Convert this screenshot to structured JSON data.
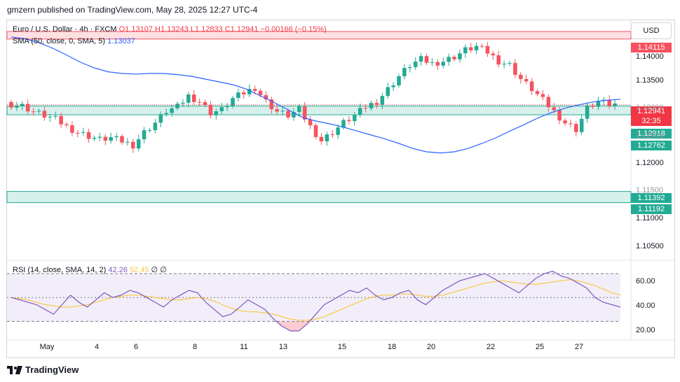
{
  "header": {
    "published": "gmzern published on TradingView.com, May 28, 2025 12:27 UTC-4"
  },
  "legend": {
    "symbol": "Euro / U.S. Dollar · 4h · FXCM",
    "open": "O1.13107",
    "high": "H1.13243",
    "low": "L1.12833",
    "close": "C1.12941",
    "change": "−0.00166 (−0.15%)"
  },
  "sma_legend": {
    "label": "SMA (50, close, 0, SMA, 5)",
    "value": "1.13037"
  },
  "rsi_legend": {
    "label": "RSI (14, close, SMA, 14, 2)",
    "value1": "42.26",
    "value2": "52.45",
    "extra": "∅ ∅"
  },
  "currency": "USD",
  "price_labels": [
    {
      "text": "1.14115",
      "color": "#f7525f"
    },
    {
      "text": "1.12941",
      "color": "#f23645"
    },
    {
      "text": "32:35",
      "color": "#f23645"
    },
    {
      "text": "1.12918",
      "color": "#22ab94"
    },
    {
      "text": "1.12762",
      "color": "#22ab94"
    },
    {
      "text": "1.11392",
      "color": "#22ab94"
    },
    {
      "text": "1.11192",
      "color": "#22ab94"
    }
  ],
  "footer": {
    "brand": "TradingView"
  },
  "chart_data": {
    "type": "candlestick",
    "symbol": "EURUSD",
    "interval": "4h",
    "x_ticks": [
      "May",
      "4",
      "6",
      "8",
      "11",
      "13",
      "15",
      "18",
      "20",
      "22",
      "25",
      "27"
    ],
    "y_ticks": [
      "1.14000",
      "1.13500",
      "1.13000",
      "1.12500",
      "1.12000",
      "1.11500",
      "1.11000",
      "1.10500"
    ],
    "ylim": [
      1.1025,
      1.1445
    ],
    "zones": [
      {
        "low": 1.14115,
        "high": 1.1425,
        "color": "#f7525f"
      },
      {
        "low": 1.12762,
        "high": 1.12918,
        "color": "#22ab94"
      },
      {
        "low": 1.11192,
        "high": 1.11392,
        "color": "#22ab94"
      }
    ],
    "close_series": [
      1.1295,
      1.1292,
      1.1282,
      1.1275,
      1.1268,
      1.1255,
      1.1245,
      1.1238,
      1.1232,
      1.1235,
      1.1229,
      1.1222,
      1.1245,
      1.1262,
      1.1283,
      1.129,
      1.131,
      1.13,
      1.128,
      1.1285,
      1.1305,
      1.1315,
      1.1325,
      1.13,
      1.1282,
      1.1275,
      1.1285,
      1.1255,
      1.123,
      1.1245,
      1.1262,
      1.1275,
      1.129,
      1.13,
      1.1322,
      1.1345,
      1.1365,
      1.1375,
      1.1368,
      1.1372,
      1.138,
      1.1392,
      1.1398,
      1.1388,
      1.1372,
      1.1365,
      1.134,
      1.1322,
      1.1302,
      1.1282,
      1.1262,
      1.125,
      1.1288,
      1.13,
      1.1294
    ],
    "sma_series": [
      1.1415,
      1.1412,
      1.1405,
      1.1395,
      1.1383,
      1.137,
      1.136,
      1.1353,
      1.135,
      1.1349,
      1.135,
      1.135,
      1.1348,
      1.1345,
      1.134,
      1.1335,
      1.133,
      1.1322,
      1.131,
      1.1298,
      1.1285,
      1.1272,
      1.1265,
      1.126,
      1.1254,
      1.1247,
      1.124,
      1.1233,
      1.1225,
      1.1216,
      1.121,
      1.1208,
      1.121,
      1.1216,
      1.1225,
      1.1235,
      1.1247,
      1.1258,
      1.127,
      1.128,
      1.1288,
      1.1294,
      1.1299,
      1.1302,
      1.1304
    ],
    "rsi": {
      "ylim": [
        15,
        80
      ],
      "levels": [
        70,
        50,
        30
      ],
      "y_ticks": [
        "60.00",
        "40.00",
        "20.00"
      ],
      "series": [
        50,
        48,
        46,
        44,
        40,
        36,
        44,
        52,
        46,
        42,
        48,
        54,
        50,
        52,
        56,
        54,
        50,
        46,
        42,
        48,
        52,
        56,
        54,
        46,
        40,
        34,
        36,
        42,
        48,
        44,
        40,
        32,
        26,
        22,
        22,
        28,
        36,
        44,
        48,
        52,
        56,
        54,
        58,
        52,
        48,
        50,
        54,
        56,
        48,
        44,
        50,
        56,
        60,
        64,
        66,
        68,
        70,
        66,
        62,
        58,
        54,
        60,
        66,
        70,
        72,
        68,
        66,
        62,
        58,
        50,
        46,
        44,
        42
      ],
      "ma_series": [
        50,
        49,
        48,
        46,
        44,
        43,
        42,
        42,
        43,
        44,
        46,
        48,
        50,
        51,
        52,
        52,
        51,
        50,
        49,
        48,
        48,
        49,
        50,
        49,
        47,
        44,
        41,
        39,
        38,
        38,
        37,
        36,
        34,
        32,
        31,
        31,
        32,
        34,
        37,
        40,
        43,
        46,
        49,
        51,
        52,
        52,
        53,
        53,
        52,
        51,
        51,
        52,
        54,
        56,
        58,
        60,
        62,
        63,
        64,
        63,
        62,
        61,
        61,
        62,
        63,
        64,
        65,
        64,
        62,
        60,
        57,
        54,
        52
      ]
    }
  }
}
